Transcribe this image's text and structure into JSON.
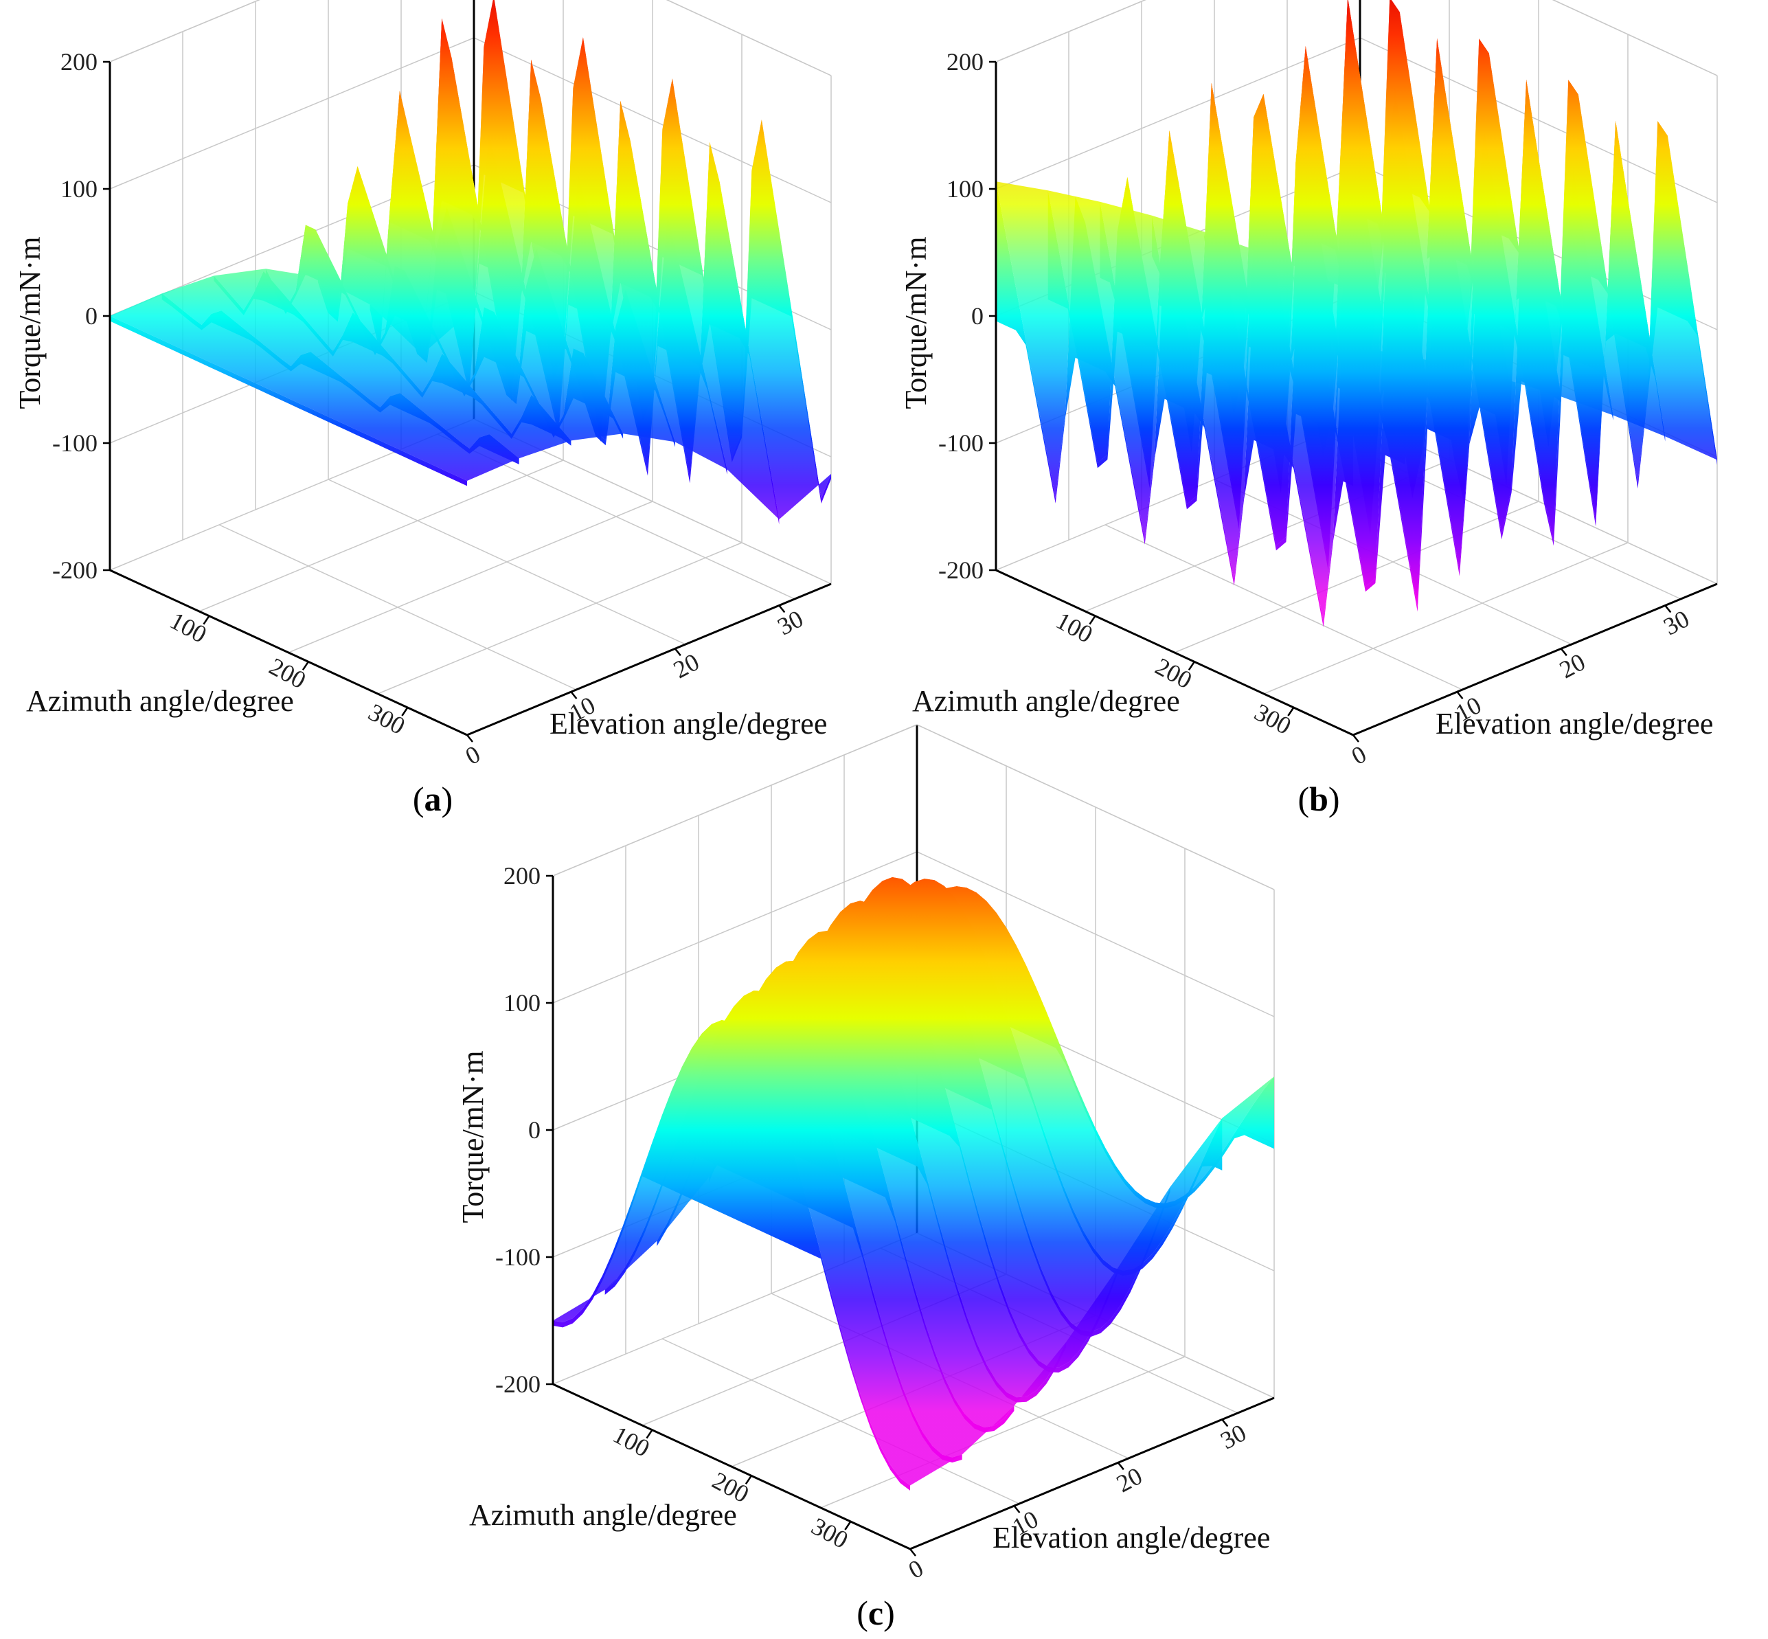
{
  "colors": {
    "colormap": [
      "#ee00ee",
      "#8b00ff",
      "#3a00ff",
      "#0040ff",
      "#00b0ff",
      "#00ffee",
      "#6eff8a",
      "#e6ff00",
      "#ffd000",
      "#ff8000",
      "#ff3000",
      "#e00000"
    ]
  },
  "chart_data": [
    {
      "type": "surface3d",
      "panel_label": "a",
      "zlabel": "Torque/mN·m",
      "xlabel": "Azimuth angle/degree",
      "ylabel": "Elevation angle/degree",
      "zlim": [
        -200,
        200
      ],
      "xlim": [
        0,
        360
      ],
      "ylim": [
        0,
        35
      ],
      "z_ticks": [
        "200",
        "100",
        "0",
        "-100",
        "-200"
      ],
      "x_ticks": [
        "100",
        "200",
        "300"
      ],
      "y_ticks": [
        "0",
        "10",
        "20",
        "30"
      ],
      "azimuth_samples": [
        0,
        10,
        20,
        30,
        40,
        50,
        60,
        70,
        80,
        90,
        100,
        110,
        120,
        130,
        140,
        150,
        160,
        170,
        180,
        190,
        200,
        210,
        220,
        230,
        240,
        250,
        260,
        270,
        280,
        290,
        300,
        310,
        320,
        330,
        340,
        350,
        360
      ],
      "elevation_samples": [
        0,
        5,
        10,
        15,
        20,
        25,
        30,
        35
      ],
      "slice_amplitudes": [
        0,
        10,
        20,
        45,
        75,
        110,
        150,
        170
      ],
      "waveform": "sawtooth",
      "cycles": 4,
      "phase": 0.3
    },
    {
      "type": "surface3d",
      "panel_label": "b",
      "zlabel": "Torque/mN·m",
      "xlabel": "Azimuth angle/degree",
      "ylabel": "Elevation angle/degree",
      "zlim": [
        -200,
        200
      ],
      "xlim": [
        0,
        360
      ],
      "ylim": [
        0,
        35
      ],
      "z_ticks": [
        "200",
        "100",
        "0",
        "-100",
        "-200"
      ],
      "x_ticks": [
        "100",
        "200",
        "300"
      ],
      "y_ticks": [
        "0",
        "10",
        "20",
        "30"
      ],
      "azimuth_samples": [
        0,
        10,
        20,
        30,
        40,
        50,
        60,
        70,
        80,
        90,
        100,
        110,
        120,
        130,
        140,
        150,
        160,
        170,
        180,
        190,
        200,
        210,
        220,
        230,
        240,
        250,
        260,
        270,
        280,
        290,
        300,
        310,
        320,
        330,
        340,
        350,
        360
      ],
      "elevation_samples": [
        0,
        5,
        10,
        15,
        20,
        25,
        30,
        35
      ],
      "slice_amplitudes": [
        140,
        145,
        150,
        155,
        160,
        165,
        170,
        175
      ],
      "waveform": "sawtooth",
      "cycles": 4,
      "phase": 0.1
    },
    {
      "type": "surface3d",
      "panel_label": "c",
      "zlabel": "Torque/mN·m",
      "xlabel": "Azimuth angle/degree",
      "ylabel": "Elevation angle/degree",
      "zlim": [
        -200,
        200
      ],
      "xlim": [
        0,
        360
      ],
      "ylim": [
        0,
        35
      ],
      "z_ticks": [
        "200",
        "100",
        "0",
        "-100",
        "-200"
      ],
      "x_ticks": [
        "100",
        "200",
        "300"
      ],
      "y_ticks": [
        "0",
        "10",
        "20",
        "30"
      ],
      "azimuth_samples": [
        0,
        10,
        20,
        30,
        40,
        50,
        60,
        70,
        80,
        90,
        100,
        110,
        120,
        130,
        140,
        150,
        160,
        170,
        180,
        190,
        200,
        210,
        220,
        230,
        240,
        250,
        260,
        270,
        280,
        290,
        300,
        310,
        320,
        330,
        340,
        350,
        360
      ],
      "elevation_samples": [
        0,
        5,
        10,
        15,
        20,
        25,
        30,
        35
      ],
      "slice_amplitudes": [
        150,
        150,
        150,
        150,
        150,
        145,
        120,
        90
      ],
      "waveform": "sine",
      "cycles": 1,
      "phase": 0.0
    }
  ]
}
